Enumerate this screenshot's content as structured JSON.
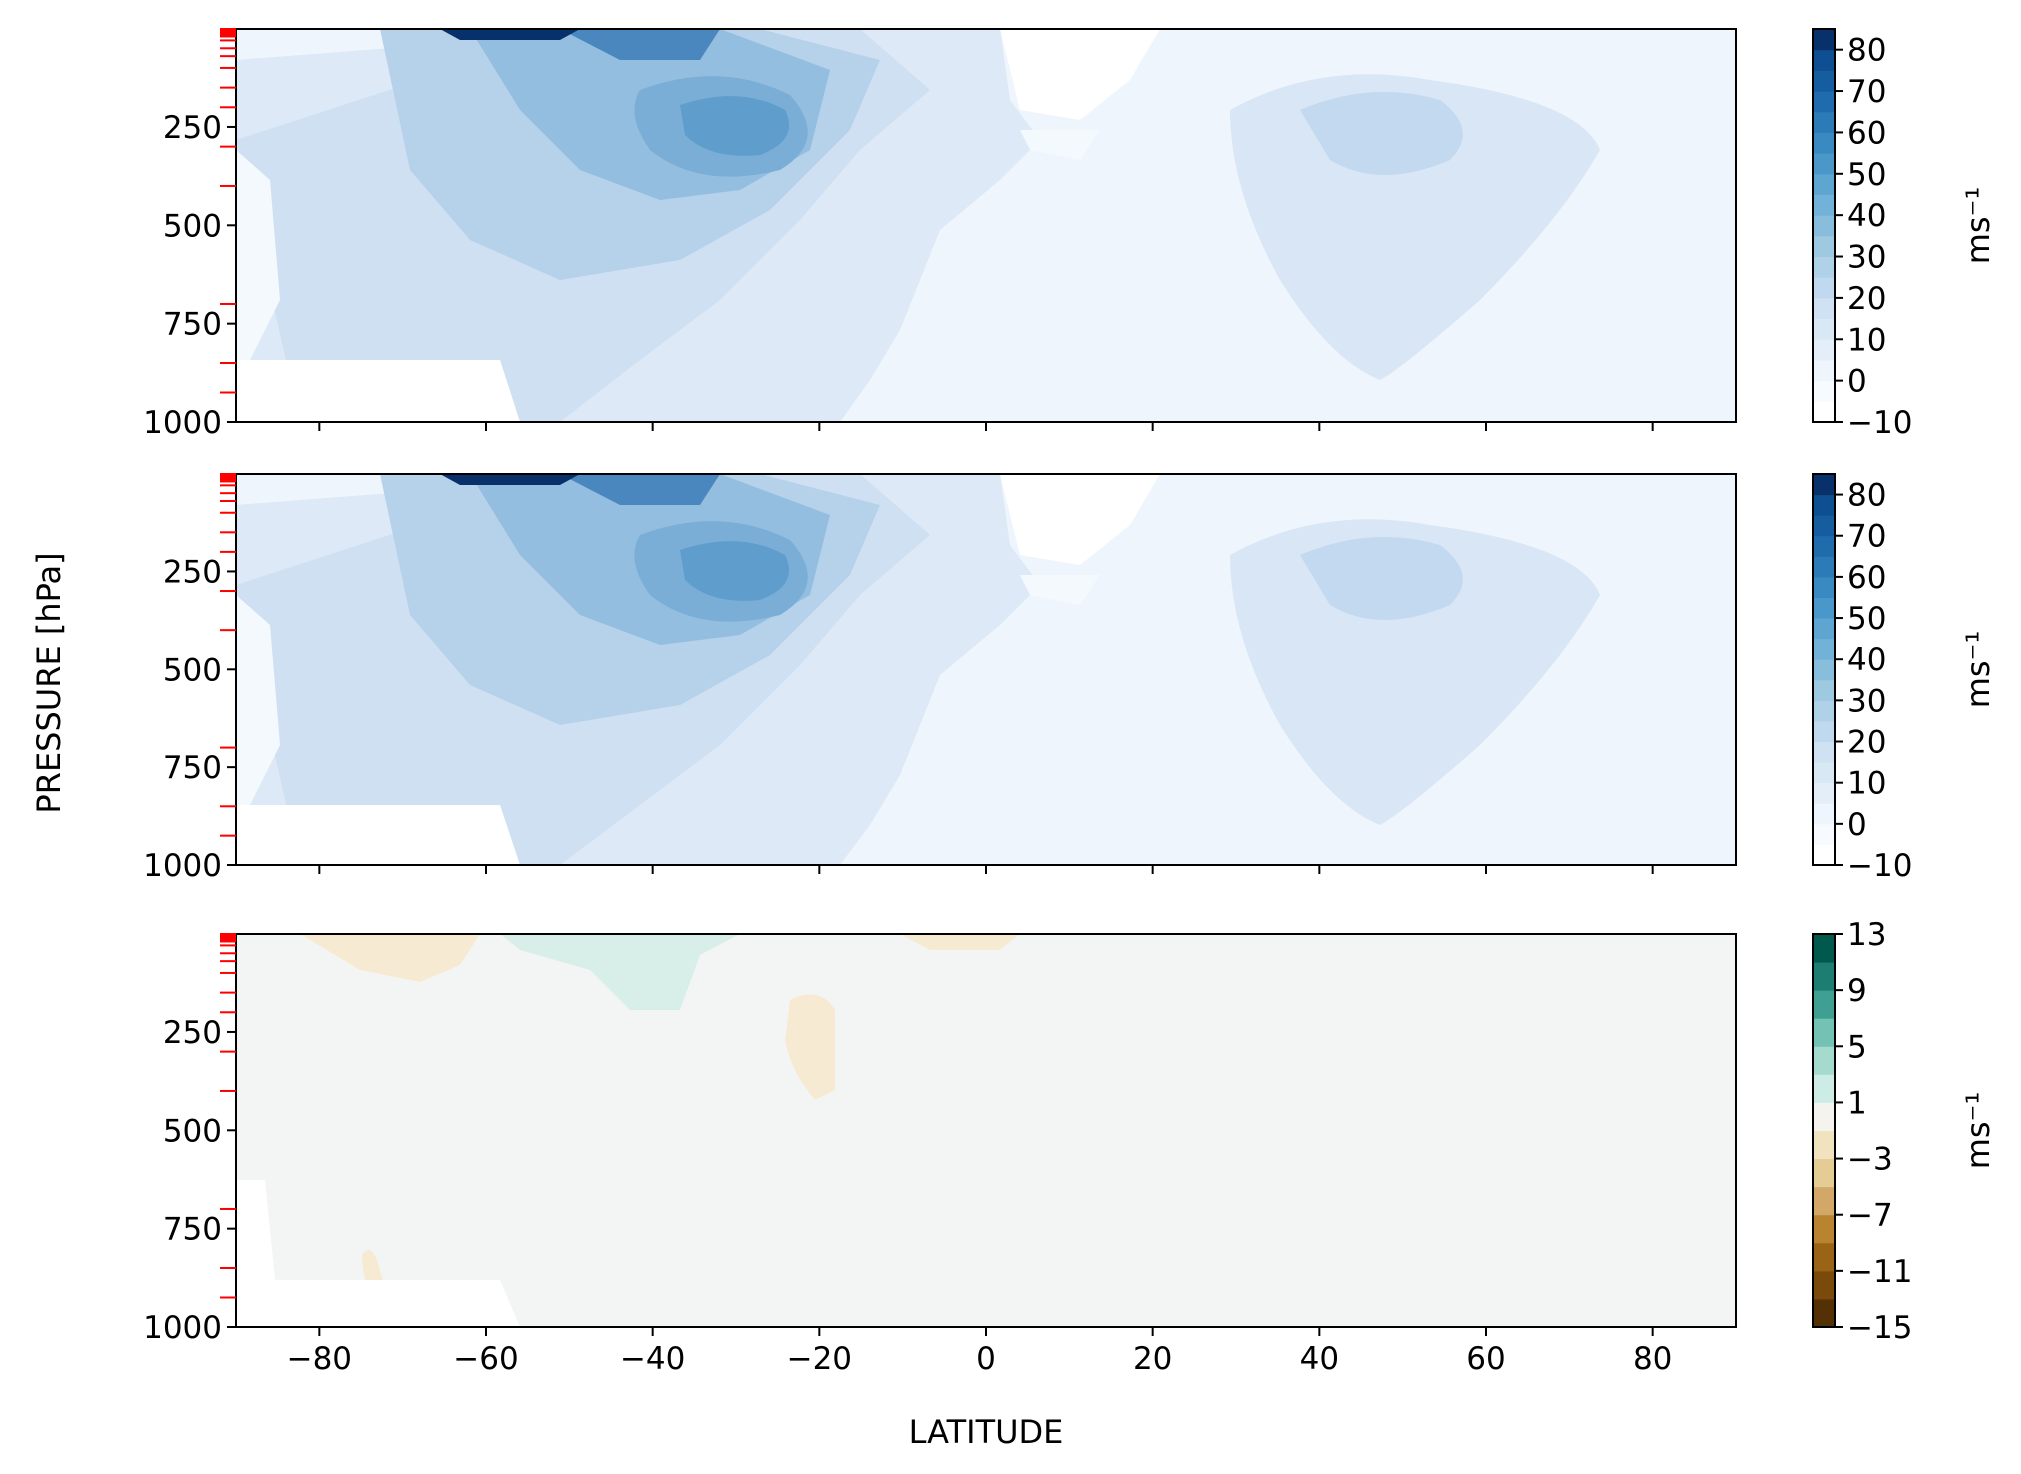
{
  "chart_data": [
    {
      "type": "heatmap",
      "panel": "top",
      "xlabel": "",
      "ylabel": "",
      "xlim": [
        -90,
        90
      ],
      "ylim": [
        1000,
        1
      ],
      "x_ticks": [
        -80,
        -60,
        -40,
        -20,
        0,
        20,
        40,
        60,
        80
      ],
      "y_ticks": [
        250,
        500,
        750,
        1000
      ],
      "y_tick_labels": [
        "250",
        "500",
        "750",
        "1000"
      ],
      "model_levels_hPa": [
        1,
        3,
        5,
        7,
        10,
        15,
        20,
        30,
        50,
        70,
        100,
        150,
        200,
        300,
        400,
        700,
        850,
        925
      ],
      "colorbar": {
        "min": -10,
        "max": 85,
        "step": 5,
        "ticks": [
          -10,
          0,
          10,
          20,
          30,
          40,
          50,
          60,
          70,
          80
        ],
        "tick_labels": [
          "−10",
          "0",
          "10",
          "20",
          "30",
          "40",
          "50",
          "60",
          "70",
          "80"
        ],
        "label": "ms⁻¹",
        "colormap": "Blues"
      },
      "features": [
        {
          "kind": "max",
          "lat": -58,
          "p": 5,
          "value": 85
        },
        {
          "kind": "max",
          "lat": -29,
          "p": 210,
          "value": 40
        },
        {
          "kind": "max",
          "lat": 46,
          "p": 230,
          "value": 25
        },
        {
          "kind": "min",
          "lat": 5,
          "p": 60,
          "value": -5
        }
      ]
    },
    {
      "type": "heatmap",
      "panel": "middle",
      "xlabel": "",
      "ylabel": "",
      "xlim": [
        -90,
        90
      ],
      "ylim": [
        1000,
        1
      ],
      "x_ticks": [
        -80,
        -60,
        -40,
        -20,
        0,
        20,
        40,
        60,
        80
      ],
      "y_ticks": [
        250,
        500,
        750,
        1000
      ],
      "y_tick_labels": [
        "250",
        "500",
        "750",
        "1000"
      ],
      "model_levels_hPa": [
        1,
        3,
        5,
        7,
        10,
        15,
        20,
        30,
        50,
        70,
        100,
        150,
        200,
        300,
        400,
        700,
        850,
        925
      ],
      "colorbar": {
        "min": -10,
        "max": 85,
        "step": 5,
        "ticks": [
          -10,
          0,
          10,
          20,
          30,
          40,
          50,
          60,
          70,
          80
        ],
        "tick_labels": [
          "−10",
          "0",
          "10",
          "20",
          "30",
          "40",
          "50",
          "60",
          "70",
          "80"
        ],
        "label": "ms⁻¹",
        "colormap": "Blues"
      },
      "features": [
        {
          "kind": "max",
          "lat": -58,
          "p": 5,
          "value": 85
        },
        {
          "kind": "max",
          "lat": -28,
          "p": 210,
          "value": 40
        },
        {
          "kind": "max",
          "lat": 45,
          "p": 220,
          "value": 25
        },
        {
          "kind": "min",
          "lat": 5,
          "p": 60,
          "value": -5
        }
      ]
    },
    {
      "type": "heatmap",
      "panel": "bottom",
      "xlabel": "LATITUDE",
      "ylabel": "",
      "xlim": [
        -90,
        90
      ],
      "ylim": [
        1000,
        1
      ],
      "x_ticks": [
        -80,
        -60,
        -40,
        -20,
        0,
        20,
        40,
        60,
        80
      ],
      "x_tick_labels": [
        "−80",
        "−60",
        "−40",
        "−20",
        "0",
        "20",
        "40",
        "60",
        "80"
      ],
      "y_ticks": [
        250,
        500,
        750,
        1000
      ],
      "y_tick_labels": [
        "250",
        "500",
        "750",
        "1000"
      ],
      "model_levels_hPa": [
        1,
        3,
        5,
        7,
        10,
        15,
        20,
        30,
        50,
        70,
        100,
        150,
        200,
        300,
        400,
        700,
        850,
        925
      ],
      "colorbar": {
        "min": -15,
        "max": 13,
        "step": 2,
        "ticks": [
          -15,
          -11,
          -7,
          -3,
          1,
          5,
          9,
          13
        ],
        "tick_labels": [
          "−15",
          "−11",
          "−7",
          "−3",
          "1",
          "5",
          "9",
          "13"
        ],
        "label": "ms⁻¹",
        "colormap": "BrBG"
      },
      "features": [
        {
          "kind": "min",
          "lat": -66,
          "p": 50,
          "value": -3
        },
        {
          "kind": "max",
          "lat": -43,
          "p": 60,
          "value": 3
        },
        {
          "kind": "min",
          "lat": -21,
          "p": 300,
          "value": -3
        },
        {
          "kind": "min",
          "lat": -4,
          "p": 5,
          "value": -3
        },
        {
          "kind": "min",
          "lat": -74,
          "p": 880,
          "value": -3
        }
      ]
    }
  ],
  "shared_ylabel": "PRESSURE [hPa]"
}
